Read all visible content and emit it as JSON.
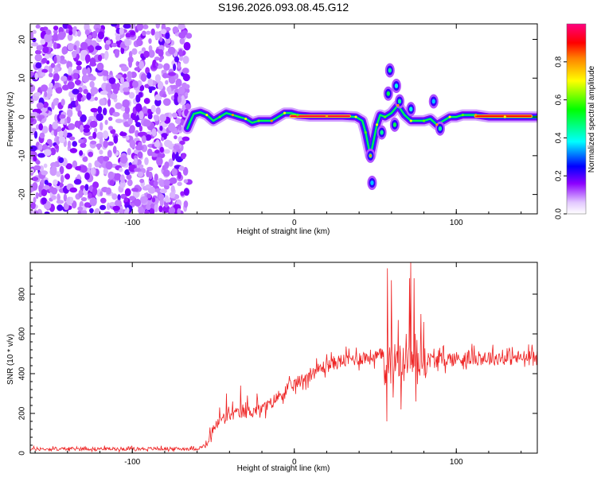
{
  "title": "S196.2026.093.08.45.G12",
  "chart_data": [
    {
      "type": "heatmap",
      "name": "spectrogram",
      "xlabel": "Height of straight line (km)",
      "ylabel": "Frequency (Hz)",
      "xlim": [
        -163,
        150
      ],
      "ylim": [
        -25,
        24
      ],
      "xticks": [
        -100,
        0,
        100
      ],
      "yticks": [
        -20,
        -10,
        0,
        10,
        20
      ],
      "noise_region": {
        "x_from": -163,
        "x_to": -65,
        "y_from": -25,
        "y_to": 24
      },
      "ridge": [
        {
          "x": -66,
          "y": -3
        },
        {
          "x": -64,
          "y": -1
        },
        {
          "x": -62,
          "y": 0.8
        },
        {
          "x": -58,
          "y": 1.2
        },
        {
          "x": -54,
          "y": 0.5
        },
        {
          "x": -50,
          "y": -1
        },
        {
          "x": -46,
          "y": 0
        },
        {
          "x": -42,
          "y": 1
        },
        {
          "x": -38,
          "y": 0.5
        },
        {
          "x": -34,
          "y": 0
        },
        {
          "x": -30,
          "y": -0.5
        },
        {
          "x": -26,
          "y": -1.5
        },
        {
          "x": -22,
          "y": -1
        },
        {
          "x": -18,
          "y": -1
        },
        {
          "x": -14,
          "y": -1
        },
        {
          "x": -10,
          "y": 0
        },
        {
          "x": -6,
          "y": 1
        },
        {
          "x": -2,
          "y": 1
        },
        {
          "x": 2,
          "y": 0.5
        },
        {
          "x": 10,
          "y": 0.2
        },
        {
          "x": 20,
          "y": 0.2
        },
        {
          "x": 30,
          "y": 0.2
        },
        {
          "x": 38,
          "y": 0
        },
        {
          "x": 42,
          "y": -1
        },
        {
          "x": 44,
          "y": -4
        },
        {
          "x": 46,
          "y": -8
        },
        {
          "x": 47,
          "y": -10
        },
        {
          "x": 49,
          "y": -6
        },
        {
          "x": 51,
          "y": -2
        },
        {
          "x": 53,
          "y": 0.5
        },
        {
          "x": 56,
          "y": 0
        },
        {
          "x": 60,
          "y": 1
        },
        {
          "x": 64,
          "y": 3
        },
        {
          "x": 68,
          "y": 0.5
        },
        {
          "x": 72,
          "y": -1
        },
        {
          "x": 76,
          "y": -1
        },
        {
          "x": 80,
          "y": -1
        },
        {
          "x": 84,
          "y": -0.5
        },
        {
          "x": 88,
          "y": -2
        },
        {
          "x": 92,
          "y": -1
        },
        {
          "x": 96,
          "y": 0
        },
        {
          "x": 100,
          "y": 0
        },
        {
          "x": 104,
          "y": 0.5
        },
        {
          "x": 108,
          "y": 0.5
        },
        {
          "x": 112,
          "y": 0.5
        },
        {
          "x": 120,
          "y": 0
        },
        {
          "x": 130,
          "y": 0
        },
        {
          "x": 140,
          "y": 0
        },
        {
          "x": 150,
          "y": 0
        }
      ],
      "hot_segments": [
        {
          "x_from": -2,
          "x_to": 34,
          "y": 0.2,
          "amp": 0.95
        },
        {
          "x_from": 112,
          "x_to": 146,
          "y": 0.2,
          "amp": 0.9
        }
      ],
      "features": [
        {
          "x": 47,
          "y": -10,
          "amp": 0.45
        },
        {
          "x": 48,
          "y": -17,
          "amp": 0.35
        },
        {
          "x": 58,
          "y": 6,
          "amp": 0.5
        },
        {
          "x": 59,
          "y": 12,
          "amp": 0.45
        },
        {
          "x": 63,
          "y": 8,
          "amp": 0.4
        },
        {
          "x": 65,
          "y": 4,
          "amp": 0.45
        },
        {
          "x": 62,
          "y": -2,
          "amp": 0.5
        },
        {
          "x": 54,
          "y": -4,
          "amp": 0.45
        },
        {
          "x": 72,
          "y": 2,
          "amp": 0.4
        },
        {
          "x": 86,
          "y": 4,
          "amp": 0.35
        },
        {
          "x": 90,
          "y": -3,
          "amp": 0.45
        }
      ],
      "colorbar": {
        "label": "Normalized spectral amplitude",
        "range": [
          0,
          1
        ],
        "ticks": [
          "0.0",
          "0.2",
          "0.4",
          "0.6",
          "0.8"
        ],
        "tick_values": [
          0.0,
          0.2,
          0.4,
          0.6,
          0.8
        ],
        "colors": [
          "#ffffff",
          "#e6c8ff",
          "#8800ff",
          "#0000ff",
          "#00ffff",
          "#00ff00",
          "#ffff00",
          "#ff8000",
          "#ff0000",
          "#ff0080"
        ]
      }
    },
    {
      "type": "line",
      "name": "snr",
      "xlabel": "Height of straight line (km)",
      "ylabel": "SNR (10 * v/v)",
      "xlim": [
        -163,
        150
      ],
      "ylim": [
        0,
        960
      ],
      "xticks": [
        -100,
        0,
        100
      ],
      "yticks": [
        0,
        200,
        400,
        600,
        800
      ],
      "color": "#ee2222",
      "envelope": [
        {
          "x": -163,
          "y": 20
        },
        {
          "x": -130,
          "y": 22
        },
        {
          "x": -100,
          "y": 22
        },
        {
          "x": -60,
          "y": 22
        },
        {
          "x": -54,
          "y": 40
        },
        {
          "x": -50,
          "y": 120
        },
        {
          "x": -45,
          "y": 170
        },
        {
          "x": -40,
          "y": 190
        },
        {
          "x": -35,
          "y": 200
        },
        {
          "x": -30,
          "y": 205
        },
        {
          "x": -25,
          "y": 215
        },
        {
          "x": -20,
          "y": 220
        },
        {
          "x": -15,
          "y": 245
        },
        {
          "x": -10,
          "y": 285
        },
        {
          "x": -5,
          "y": 315
        },
        {
          "x": 0,
          "y": 345
        },
        {
          "x": 5,
          "y": 370
        },
        {
          "x": 10,
          "y": 400
        },
        {
          "x": 15,
          "y": 420
        },
        {
          "x": 20,
          "y": 440
        },
        {
          "x": 25,
          "y": 455
        },
        {
          "x": 30,
          "y": 465
        },
        {
          "x": 40,
          "y": 480
        },
        {
          "x": 50,
          "y": 485
        },
        {
          "x": 55,
          "y": 490
        },
        {
          "x": 60,
          "y": 470
        },
        {
          "x": 70,
          "y": 460
        },
        {
          "x": 80,
          "y": 470
        },
        {
          "x": 90,
          "y": 470
        },
        {
          "x": 100,
          "y": 475
        },
        {
          "x": 110,
          "y": 480
        },
        {
          "x": 120,
          "y": 480
        },
        {
          "x": 130,
          "y": 480
        },
        {
          "x": 140,
          "y": 480
        },
        {
          "x": 150,
          "y": 480
        }
      ],
      "spikes": [
        {
          "x": -50,
          "y": 140
        },
        {
          "x": -46,
          "y": 230
        },
        {
          "x": -42,
          "y": 300
        },
        {
          "x": -38,
          "y": 260
        },
        {
          "x": -33,
          "y": 340
        },
        {
          "x": -29,
          "y": 290
        },
        {
          "x": -23,
          "y": 300
        },
        {
          "x": -17,
          "y": 260
        },
        {
          "x": 57,
          "y": 160
        },
        {
          "x": 57.5,
          "y": 930
        },
        {
          "x": 60,
          "y": 870
        },
        {
          "x": 61,
          "y": 280
        },
        {
          "x": 64,
          "y": 670
        },
        {
          "x": 66,
          "y": 220
        },
        {
          "x": 71,
          "y": 880
        },
        {
          "x": 72,
          "y": 960
        },
        {
          "x": 74,
          "y": 880
        },
        {
          "x": 75,
          "y": 260
        },
        {
          "x": 69,
          "y": 600
        },
        {
          "x": 78,
          "y": 700
        },
        {
          "x": 80,
          "y": 660
        }
      ]
    }
  ]
}
